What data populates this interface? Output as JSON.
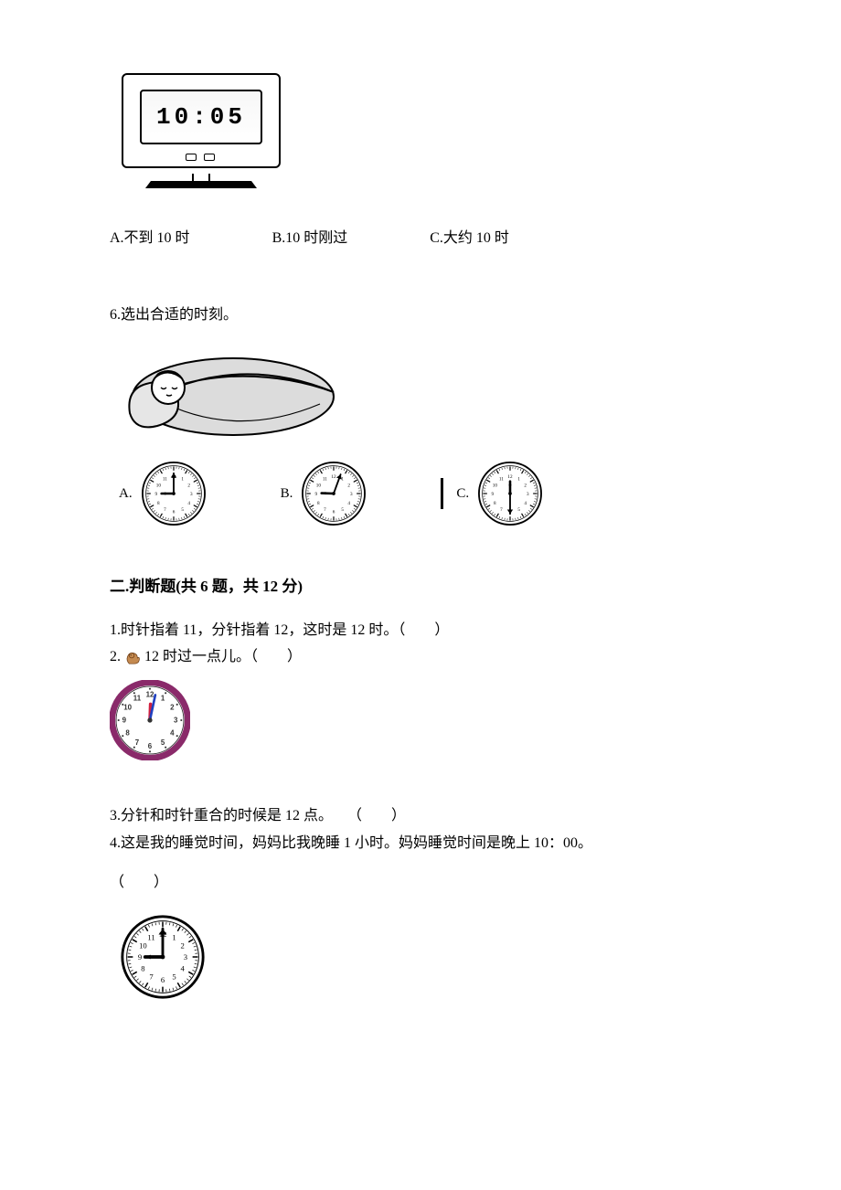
{
  "digitalClock": {
    "time": "10:05"
  },
  "q5": {
    "optA": "A.不到 10 时",
    "optB": "B.10 时刚过",
    "optC": "C.大约 10 时"
  },
  "q6": {
    "prompt": "6.选出合适的时刻。",
    "labelA": "A.",
    "labelB": "B.",
    "labelC": "C.",
    "clockA": {
      "hourAngle": 270,
      "minuteAngle": 0
    },
    "clockB": {
      "hourAngle": 272,
      "minuteAngle": 20
    },
    "clockC": {
      "hourAngle": 0,
      "minuteAngle": 180
    }
  },
  "section2": {
    "header": "二.判断题(共 6 题，共 12 分)",
    "q1": "1.时针指着 11，分针指着 12，这时是 12 时。（　　）",
    "q2_before": "2.",
    "q2_after": "12 时过一点儿。（　　）",
    "q3": "3.分针和时针重合的时候是 12 点。　　（　　）",
    "q4_line1": "4.这是我的睡觉时间，妈妈比我晚睡 1 小时。妈妈睡觉时间是晚上 10：00。",
    "q4_line2": "（　　）"
  },
  "purpleClock": {
    "hourAngle": 2,
    "minuteAngle": 12,
    "rimColor": "#8a2a6a"
  },
  "plainClock": {
    "hourAngle": 270,
    "minuteAngle": 0
  },
  "style": {
    "clockStroke": "#000000",
    "clockFill": "#ffffff",
    "minuteHandColor": "#000000",
    "hourHandColor": "#000000",
    "purpleSecond": "#d02040",
    "purpleMinute": "#2040c0"
  }
}
